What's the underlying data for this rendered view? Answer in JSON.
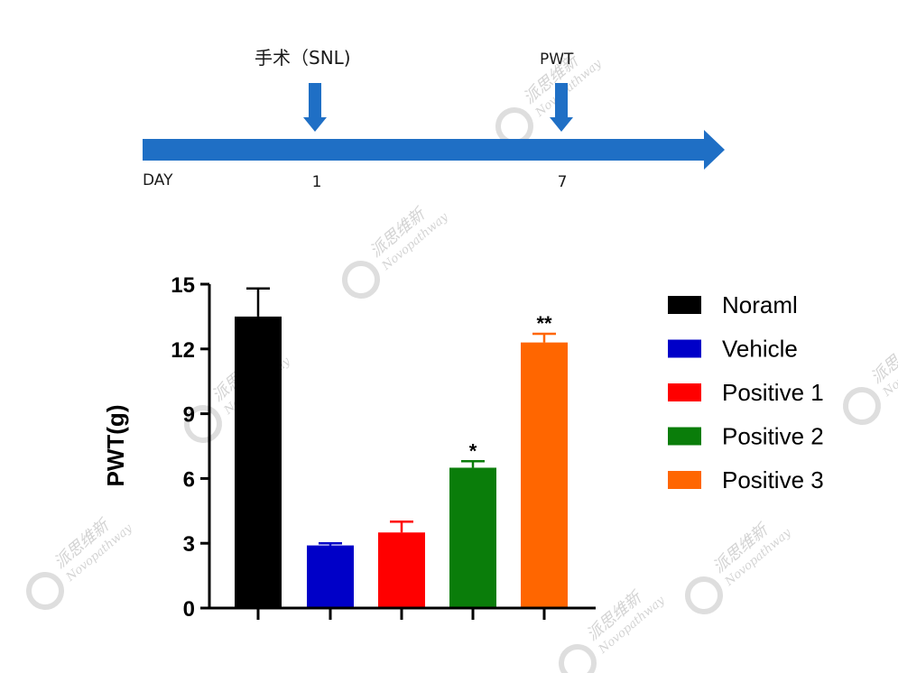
{
  "timeline": {
    "start_label": "DAY",
    "events": [
      {
        "label": "手术（SNL)",
        "day": "1"
      },
      {
        "label": "PWT",
        "day": "7"
      }
    ],
    "color": "#1f6fc5"
  },
  "chart_data": {
    "type": "bar",
    "ylabel": "PWT(g)",
    "ylim": [
      0,
      15
    ],
    "yticks": [
      0,
      3,
      6,
      9,
      12,
      15
    ],
    "series": [
      {
        "name": "Noraml",
        "value": 13.5,
        "error": 1.3,
        "color": "#000000",
        "annotation": ""
      },
      {
        "name": "Vehicle",
        "value": 2.9,
        "error": 0.1,
        "color": "#0000c8",
        "annotation": ""
      },
      {
        "name": "Positive 1",
        "value": 3.5,
        "error": 0.5,
        "color": "#ff0000",
        "annotation": ""
      },
      {
        "name": "Positive 2",
        "value": 6.5,
        "error": 0.3,
        "color": "#0a7d0a",
        "annotation": "*"
      },
      {
        "name": "Positive 3",
        "value": 12.3,
        "error": 0.4,
        "color": "#ff6600",
        "annotation": "**"
      }
    ],
    "legend_position": "right"
  },
  "watermark": {
    "cn": "派思维新",
    "en": "Novopathway"
  }
}
